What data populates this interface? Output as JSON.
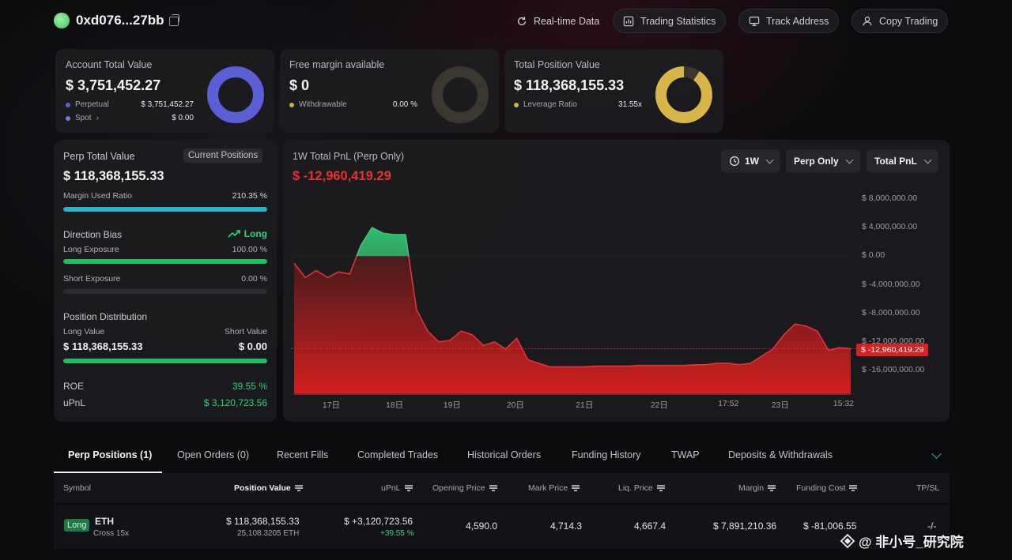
{
  "header": {
    "address": "0xd076...27bb",
    "buttons": {
      "realtime": "Real-time Data",
      "stats": "Trading Statistics",
      "track": "Track Address",
      "copy": "Copy Trading"
    }
  },
  "cards": {
    "account": {
      "title": "Account Total Value",
      "value": "$ 3,751,452.27",
      "row1_label": "Perpetual",
      "row1_value": "$ 3,751,452.27",
      "row2_label": "Spot",
      "row2_value": "$ 0.00",
      "color": "#5b5fd6"
    },
    "margin": {
      "title": "Free margin available",
      "value": "$ 0",
      "row1_label": "Withdrawable",
      "row1_value": "0.00 %",
      "color": "#c9a94a"
    },
    "position": {
      "title": "Total Position Value",
      "value": "$ 118,368,155.33",
      "row1_label": "Leverage Ratio",
      "row1_value": "31.55x",
      "color": "#d8b548"
    }
  },
  "perp": {
    "title": "Perp Total Value",
    "tag": "Current Positions",
    "value": "$ 118,368,155.33",
    "margin_label": "Margin Used Ratio",
    "margin_value": "210.35 %",
    "margin_fill": 1.0,
    "direction_label": "Direction Bias",
    "direction_value": "Long",
    "long_label": "Long Exposure",
    "long_value": "100.00 %",
    "long_fill": 1.0,
    "short_label": "Short Exposure",
    "short_value": "0.00 %",
    "short_fill": 0.0,
    "dist_label": "Position Distribution",
    "long_value_label": "Long Value",
    "short_value_label": "Short Value",
    "long_value_amount": "$ 118,368,155.33",
    "short_value_amount": "$ 0.00",
    "dist_fill": 1.0,
    "roe_label": "ROE",
    "roe_value": "39.55 %",
    "upnl_label": "uPnL",
    "upnl_value": "$ 3,120,723.56"
  },
  "pnl_panel": {
    "title": "1W Total PnL (Perp Only)",
    "value": "$ -12,960,419.29",
    "filters": {
      "period": "1W",
      "scope": "Perp Only",
      "metric": "Total PnL"
    },
    "current_label": "$ -12,960,419.29"
  },
  "chart_data": {
    "type": "area",
    "ylim": [
      -18000000,
      10000000
    ],
    "y_ticks": [
      "$ 8,000,000.00",
      "$ 4,000,000.00",
      "$ 0.00",
      "$ -4,000,000.00",
      "$ -8,000,000.00",
      "$ -12,000,000.00",
      "$ -16,000,000.00"
    ],
    "y_tick_values": [
      8000000,
      4000000,
      0,
      -4000000,
      -8000000,
      -12000000,
      -16000000
    ],
    "x_ticks": [
      "17日",
      "18日",
      "19日",
      "20日",
      "21日",
      "22日",
      "17:52",
      "23日",
      "15:32"
    ],
    "x_tick_positions": [
      0.07,
      0.18,
      0.28,
      0.39,
      0.51,
      0.64,
      0.76,
      0.85,
      0.96
    ],
    "x": [
      0,
      0.02,
      0.04,
      0.06,
      0.08,
      0.1,
      0.12,
      0.14,
      0.16,
      0.18,
      0.2,
      0.22,
      0.24,
      0.26,
      0.28,
      0.3,
      0.32,
      0.34,
      0.36,
      0.38,
      0.4,
      0.42,
      0.44,
      0.46,
      0.48,
      0.5,
      0.52,
      0.54,
      0.56,
      0.58,
      0.6,
      0.62,
      0.64,
      0.66,
      0.68,
      0.7,
      0.72,
      0.74,
      0.76,
      0.78,
      0.8,
      0.82,
      0.84,
      0.86,
      0.88,
      0.9,
      0.92,
      0.94,
      0.96,
      0.98,
      1.0
    ],
    "values": [
      -1000000,
      -3000000,
      -2000000,
      -3000000,
      -2200000,
      -2500000,
      1500000,
      4000000,
      3200000,
      3000000,
      3000000,
      -7500000,
      -10500000,
      -12000000,
      -11800000,
      -10500000,
      -11000000,
      -12500000,
      -12000000,
      -13000000,
      -11500000,
      -14500000,
      -15000000,
      -15500000,
      -15500000,
      -15500000,
      -15500000,
      -15400000,
      -15400000,
      -15400000,
      -15400000,
      -15300000,
      -15300000,
      -15300000,
      -15300000,
      -15300000,
      -15200000,
      -15200000,
      -15000000,
      -15000000,
      -15200000,
      -15000000,
      -14000000,
      -13000000,
      -11000000,
      -9500000,
      -9800000,
      -10500000,
      -13200000,
      -12800000,
      -12960419
    ]
  },
  "tabs": [
    "Perp Positions (1)",
    "Open Orders (0)",
    "Recent Fills",
    "Completed Trades",
    "Historical Orders",
    "Funding History",
    "TWAP",
    "Deposits & Withdrawals"
  ],
  "table": {
    "headers": {
      "symbol": "Symbol",
      "position_value": "Position Value",
      "upnl": "uPnL",
      "opening_price": "Opening Price",
      "mark_price": "Mark Price",
      "liq_price": "Liq. Price",
      "margin": "Margin",
      "funding_cost": "Funding Cost",
      "tpsl": "TP/SL"
    },
    "row": {
      "side": "Long",
      "symbol": "ETH",
      "mode": "Cross 15x",
      "position_value": "$ 118,368,155.33",
      "position_size": "25,108.3205 ETH",
      "upnl": "$ +3,120,723.56",
      "upnl_pct": "+39.55 %",
      "opening_price": "4,590.0",
      "mark_price": "4,714.3",
      "liq_price": "4,667.4",
      "margin": "$ 7,891,210.36",
      "funding_cost": "$ -81,006.55",
      "tpsl": "-/-"
    }
  },
  "watermark": "@ 非小号_研究院"
}
